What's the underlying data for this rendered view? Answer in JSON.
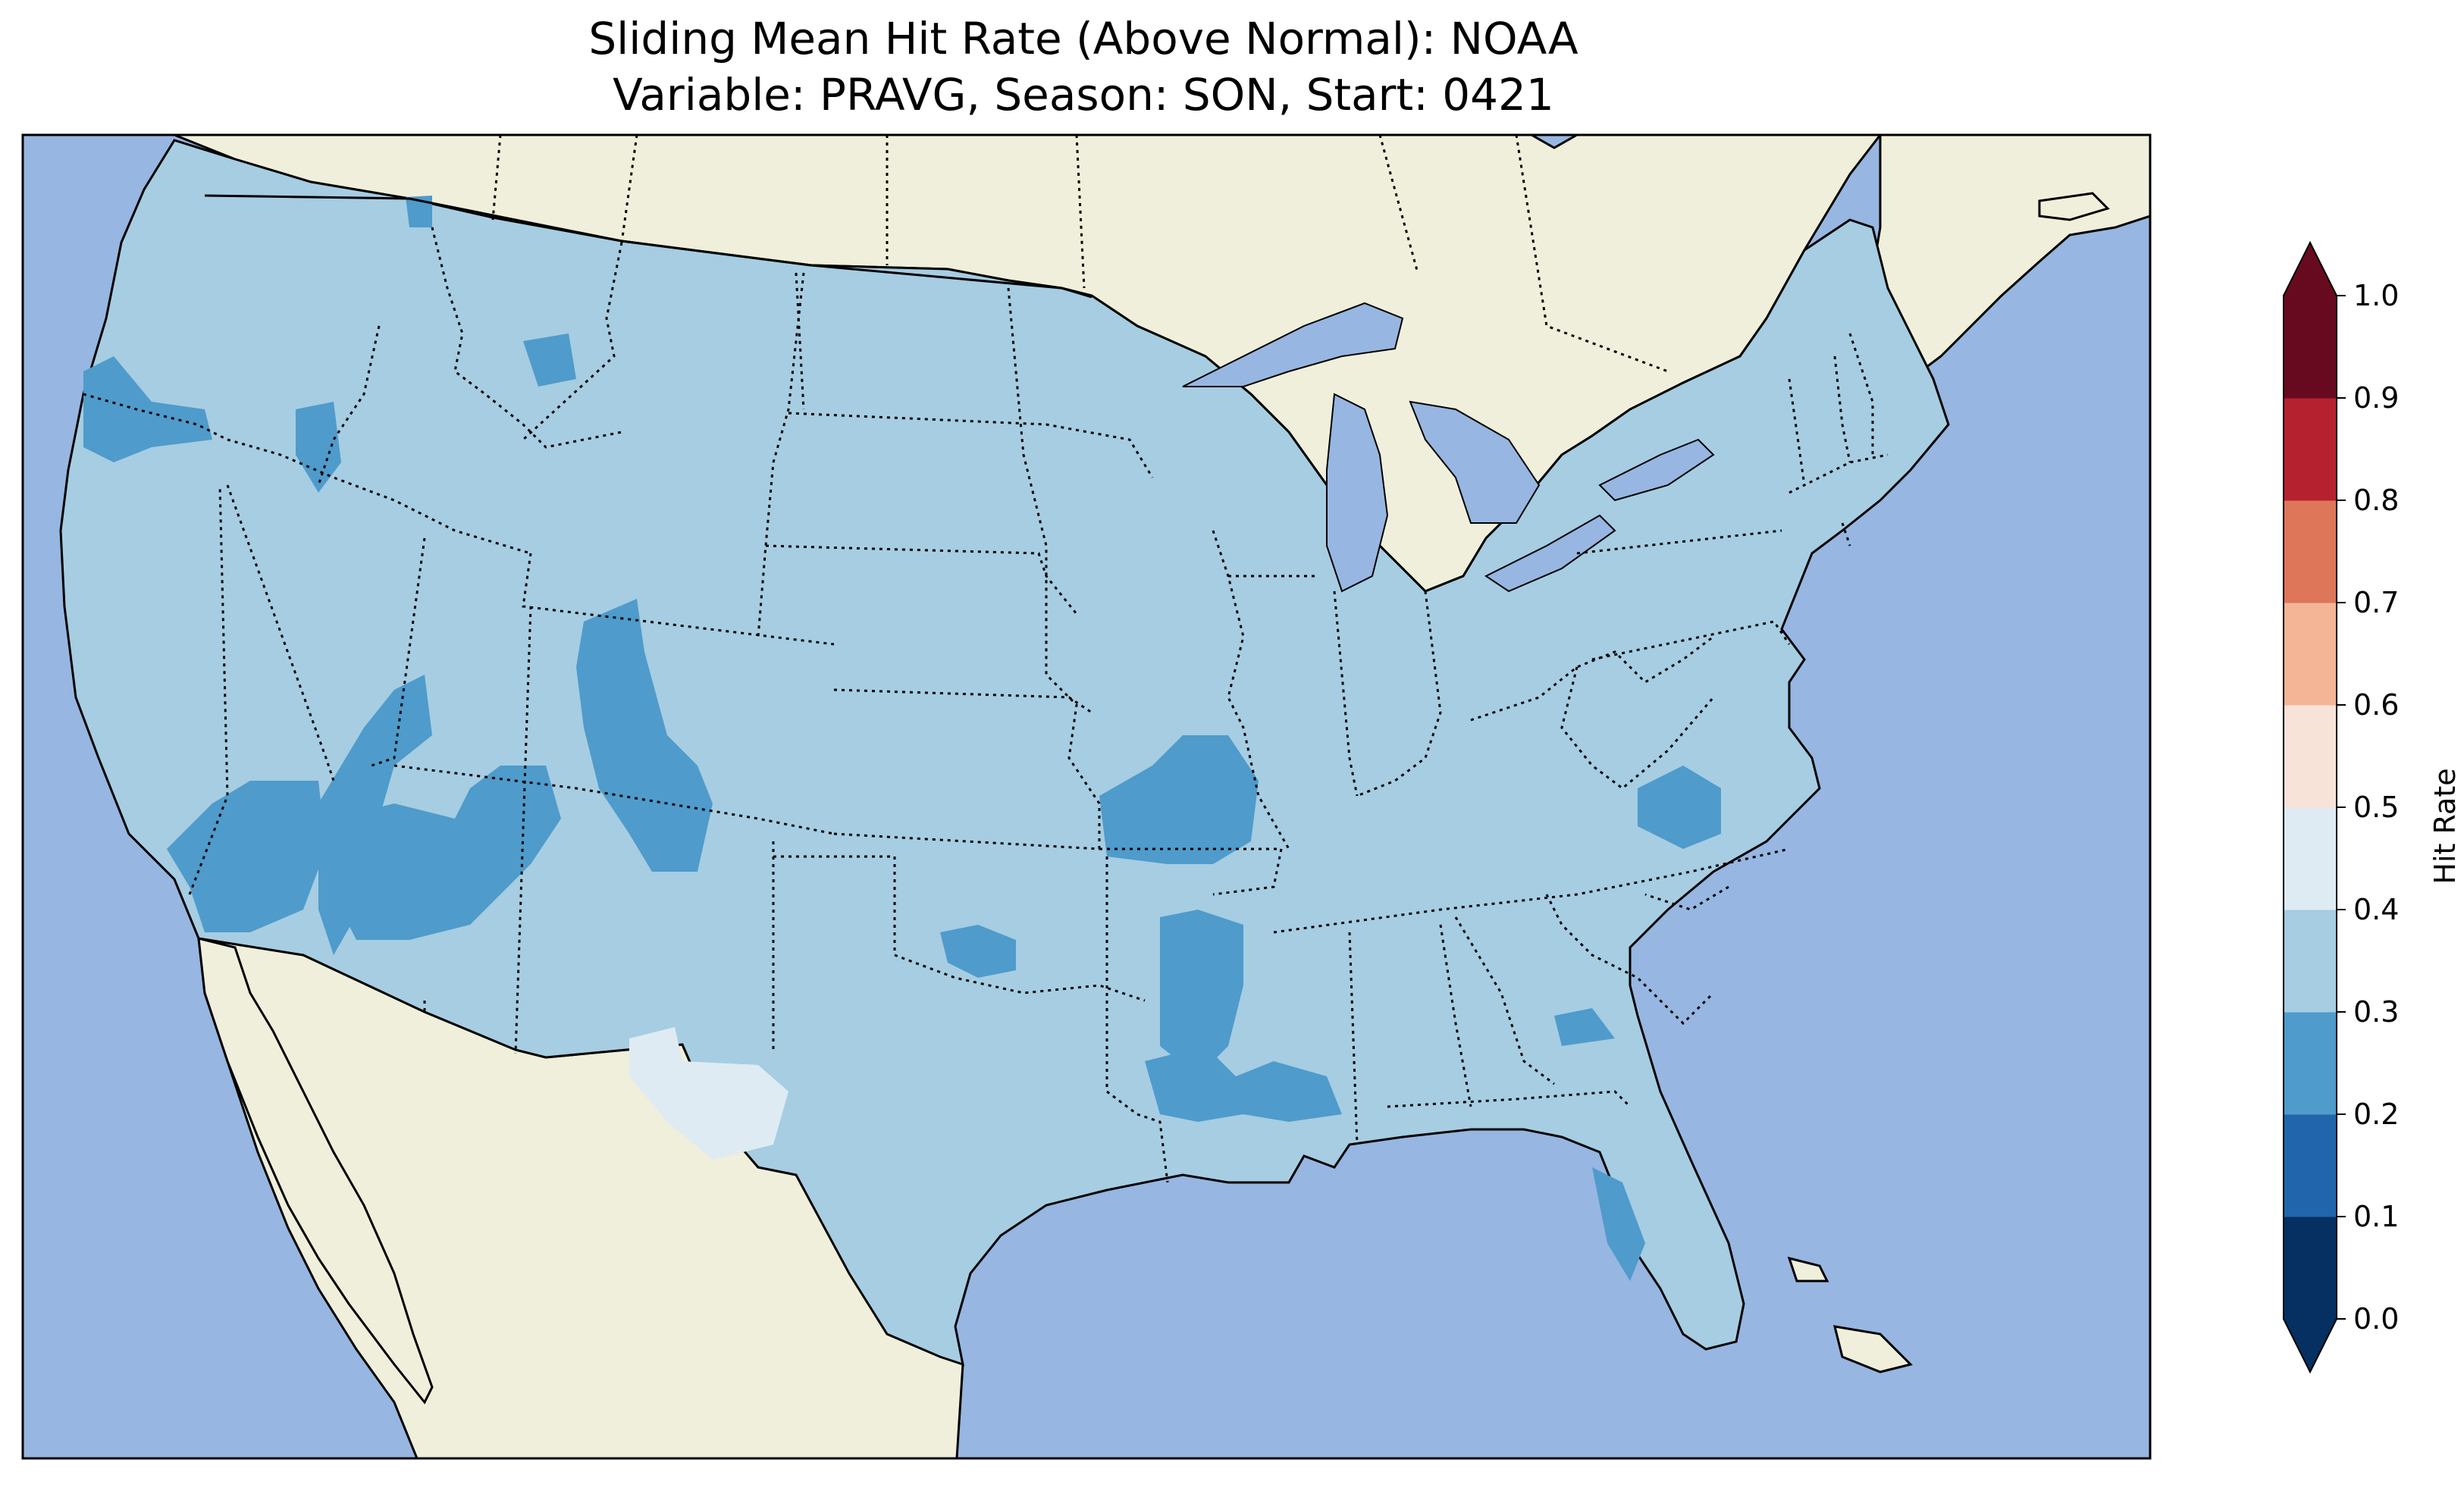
{
  "title": {
    "line1": "Sliding Mean Hit Rate (Above Normal): NOAA",
    "line2": "Variable: PRAVG, Season: SON, Start: 0421"
  },
  "map": {
    "region": "Contiguous United States",
    "ocean_color": "#97b6e1",
    "land_color": "#efefdb",
    "coastline_color": "#000000",
    "state_border_style": "dotted"
  },
  "colorbar": {
    "label": "Hit Rate",
    "ticks": [
      "0.0",
      "0.1",
      "0.2",
      "0.3",
      "0.4",
      "0.5",
      "0.6",
      "0.7",
      "0.8",
      "0.9",
      "1.0"
    ],
    "bins": [
      {
        "range": [
          0.0,
          0.1
        ],
        "color": "#053061"
      },
      {
        "range": [
          0.1,
          0.2
        ],
        "color": "#2166ac"
      },
      {
        "range": [
          0.2,
          0.3
        ],
        "color": "#4f9bcb"
      },
      {
        "range": [
          0.3,
          0.4
        ],
        "color": "#a6cde2"
      },
      {
        "range": [
          0.4,
          0.5
        ],
        "color": "#dfebf3"
      },
      {
        "range": [
          0.5,
          0.6
        ],
        "color": "#f8e3d9"
      },
      {
        "range": [
          0.6,
          0.7
        ],
        "color": "#f4b597"
      },
      {
        "range": [
          0.7,
          0.8
        ],
        "color": "#de7659"
      },
      {
        "range": [
          0.8,
          0.9
        ],
        "color": "#b6212f"
      },
      {
        "range": [
          0.9,
          1.0
        ],
        "color": "#670a1f"
      }
    ],
    "extend": "both"
  },
  "chart_data": {
    "type": "heatmap",
    "title": "Sliding Mean Hit Rate (Above Normal): NOAA\nVariable: PRAVG, Season: SON, Start: 0421",
    "colorbar_label": "Hit Rate",
    "value_range": [
      0.0,
      1.0
    ],
    "dominant_value_bin": [
      0.3,
      0.4
    ],
    "regions": [
      {
        "area": "Southwest / Great Basin / Four Corners",
        "bin": [
          0.2,
          0.3
        ]
      },
      {
        "area": "Wyoming-Colorado corridor",
        "bin": [
          0.2,
          0.3
        ]
      },
      {
        "area": "Pacific Northwest coast",
        "bin": [
          0.2,
          0.3
        ]
      },
      {
        "area": "Kansas-Missouri border",
        "bin": [
          0.2,
          0.3
        ]
      },
      {
        "area": "Lower Mississippi Valley",
        "bin": [
          0.2,
          0.3
        ]
      },
      {
        "area": "Eastern North Carolina",
        "bin": [
          0.2,
          0.3
        ]
      },
      {
        "area": "Southern New Mexico / West Texas",
        "bin": [
          0.4,
          0.5
        ]
      }
    ]
  }
}
